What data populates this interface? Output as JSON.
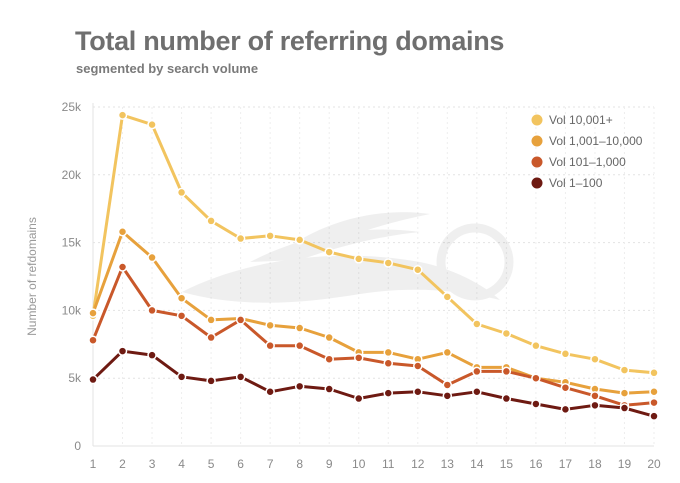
{
  "title": "Total number of referring domains",
  "subtitle": "segmented by search volume",
  "chart_data": {
    "type": "line",
    "title": "Total number of referring domains",
    "subtitle": "segmented by search volume",
    "xlabel": "",
    "ylabel": "Number of refdomains",
    "x": [
      1,
      2,
      3,
      4,
      5,
      6,
      7,
      8,
      9,
      10,
      11,
      12,
      13,
      14,
      15,
      16,
      17,
      18,
      19,
      20
    ],
    "xlim": [
      1,
      20
    ],
    "ylim": [
      0,
      25000
    ],
    "yticks": [
      0,
      5000,
      10000,
      15000,
      20000,
      25000
    ],
    "ytick_labels": [
      "0",
      "5k",
      "10k",
      "15k",
      "20k",
      "25k"
    ],
    "grid": true,
    "legend_position": "top-right",
    "series": [
      {
        "name": "Vol 10,001+",
        "color": "#f2c45f",
        "values": [
          9600,
          24400,
          23700,
          18700,
          16600,
          15300,
          15500,
          15200,
          14300,
          13800,
          13500,
          13000,
          11000,
          9000,
          8300,
          7400,
          6800,
          6400,
          5600,
          5400
        ]
      },
      {
        "name": "Vol 1,001–10,000",
        "color": "#e7a13c",
        "values": [
          9800,
          15800,
          13900,
          10900,
          9300,
          9400,
          8900,
          8700,
          8000,
          6900,
          6900,
          6400,
          6900,
          5800,
          5800,
          5000,
          4700,
          4200,
          3900,
          4000
        ]
      },
      {
        "name": "Vol 101–1,000",
        "color": "#c9582a",
        "values": [
          7800,
          13200,
          10000,
          9600,
          8000,
          9300,
          7400,
          7400,
          6400,
          6500,
          6100,
          5900,
          4500,
          5500,
          5500,
          5000,
          4300,
          3700,
          3000,
          3200
        ]
      },
      {
        "name": "Vol 1–100",
        "color": "#6e1a12",
        "values": [
          4900,
          7000,
          6700,
          5100,
          4800,
          5100,
          4000,
          4400,
          4200,
          3500,
          3900,
          4000,
          3700,
          4000,
          3500,
          3100,
          2700,
          3000,
          2800,
          2200
        ]
      }
    ]
  }
}
